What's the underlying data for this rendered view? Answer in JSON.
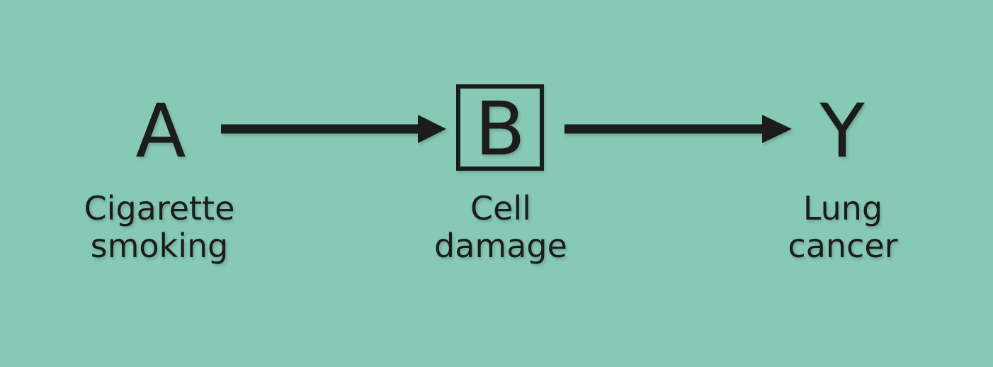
{
  "nodes": {
    "a": {
      "letter": "A",
      "label_line1": "Cigarette",
      "label_line2": "smoking"
    },
    "b": {
      "letter": "B",
      "label_line1": "Cell",
      "label_line2": "damage"
    },
    "y": {
      "letter": "Y",
      "label_line1": "Lung",
      "label_line2": "cancer"
    }
  },
  "edges": [
    {
      "from": "A",
      "to": "B"
    },
    {
      "from": "B",
      "to": "Y"
    }
  ],
  "conditioned_node": "B",
  "colors": {
    "background": "#86cab6",
    "ink": "#1c1c1c"
  }
}
